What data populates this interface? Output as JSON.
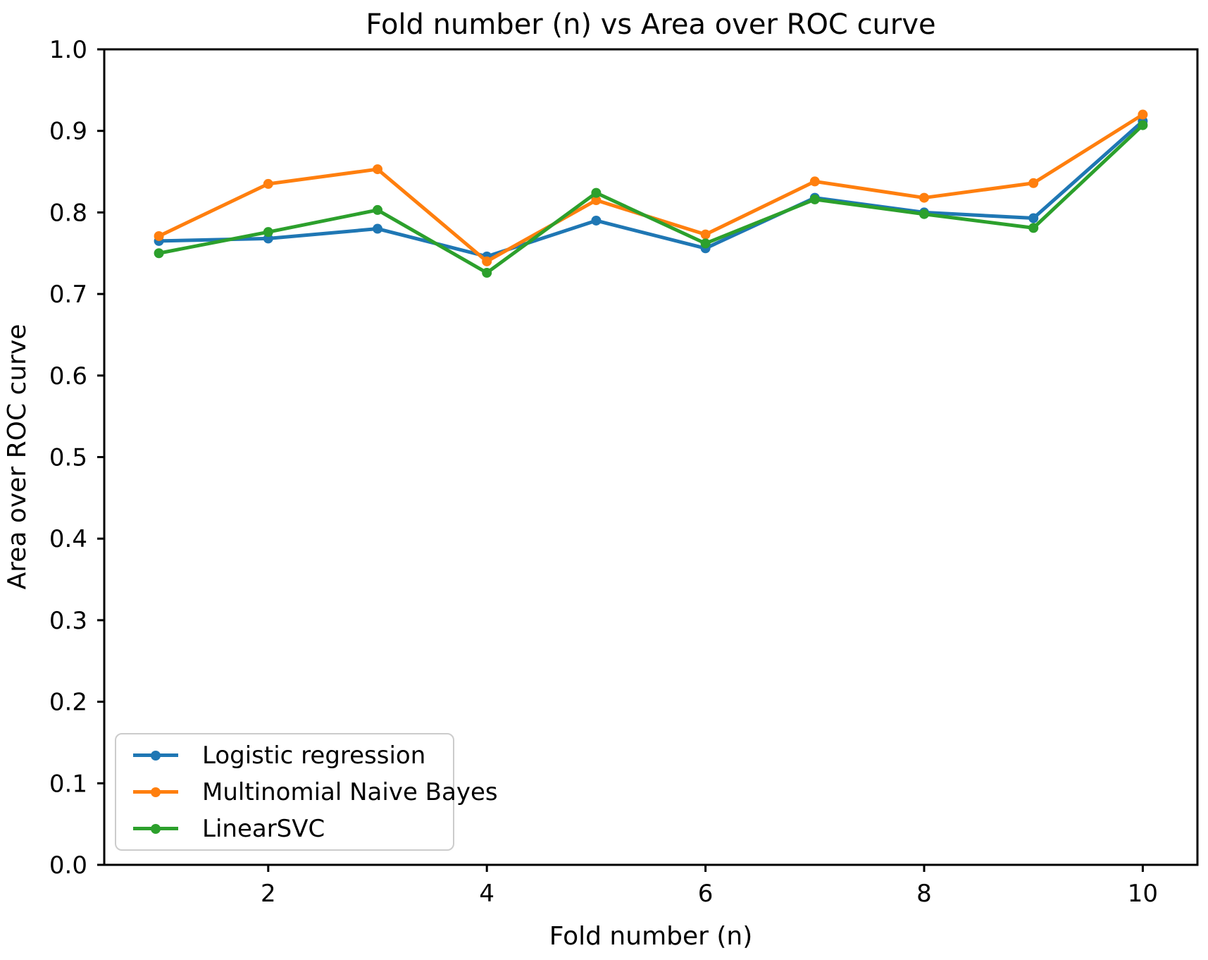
{
  "chart_data": {
    "type": "line",
    "title": "Fold number (n) vs Area over ROC curve",
    "xlabel": "Fold number (n)",
    "ylabel": "Area over ROC curve",
    "x": [
      1,
      2,
      3,
      4,
      5,
      6,
      7,
      8,
      9,
      10
    ],
    "xlim": [
      0.5,
      10.5
    ],
    "ylim": [
      0.0,
      1.0
    ],
    "x_ticks": [
      2,
      4,
      6,
      8,
      10
    ],
    "y_ticks": [
      0.0,
      0.1,
      0.2,
      0.3,
      0.4,
      0.5,
      0.6,
      0.7,
      0.8,
      0.9,
      1.0
    ],
    "grid": false,
    "plot_background": "#ffffff",
    "axis_color": "#000000",
    "legend": {
      "position": "lower left",
      "border_color": "#cccccc"
    },
    "series": [
      {
        "name": "Logistic regression",
        "color": "#1f77b4",
        "values": [
          0.765,
          0.768,
          0.78,
          0.746,
          0.79,
          0.756,
          0.818,
          0.8,
          0.793,
          0.912
        ]
      },
      {
        "name": "Multinomial Naive Bayes",
        "color": "#ff7f0e",
        "values": [
          0.771,
          0.835,
          0.853,
          0.74,
          0.815,
          0.773,
          0.838,
          0.818,
          0.836,
          0.92
        ]
      },
      {
        "name": "LinearSVC",
        "color": "#2ca02c",
        "values": [
          0.75,
          0.776,
          0.803,
          0.726,
          0.824,
          0.762,
          0.816,
          0.798,
          0.781,
          0.907
        ]
      }
    ]
  }
}
